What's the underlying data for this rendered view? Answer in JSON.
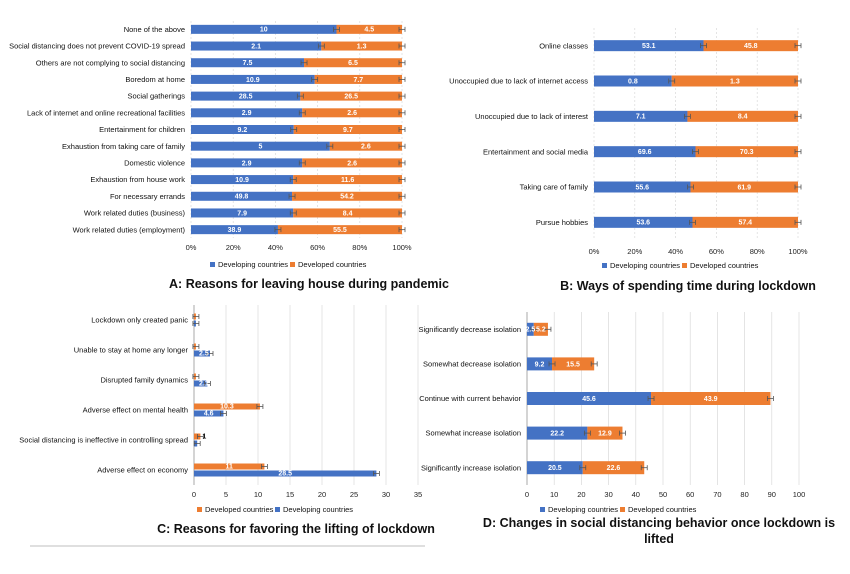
{
  "colors": {
    "developing": "#4472C4",
    "developed": "#ED7D31",
    "grid": "#d9d9d9",
    "divider": "#bfbfbf"
  },
  "chart_data": [
    {
      "type": "bar",
      "orientation": "horizontal",
      "stacked": "percent",
      "caption": "A: Reasons for leaving house during pandemic",
      "categories": [
        "None of the above",
        "Social distancing does not prevent COVID-19 spread",
        "Others are not complying to social distancing",
        "Boredom at home",
        "Social gatherings",
        "Lack of internet and online recreational facilities",
        "Entertainment for children",
        "Exhaustion from taking care of family",
        "Domestic violence",
        "Exhaustion from house work",
        "For necessary errands",
        "Work related duties (business)",
        "Work related duties (employment)"
      ],
      "series": [
        {
          "name": "Developing countries",
          "values": [
            10,
            2.1,
            7.5,
            10.9,
            28.5,
            2.9,
            9.2,
            5,
            2.9,
            10.9,
            49.8,
            7.9,
            38.9
          ]
        },
        {
          "name": "Developed countries",
          "values": [
            4.5,
            1.3,
            6.5,
            7.7,
            26.5,
            2.6,
            9.7,
            2.6,
            2.6,
            11.6,
            54.2,
            8.4,
            55.5
          ]
        }
      ],
      "xticks": [
        "0%",
        "20%",
        "40%",
        "60%",
        "80%",
        "100%"
      ],
      "legend": "bottom"
    },
    {
      "type": "bar",
      "orientation": "horizontal",
      "stacked": "percent",
      "caption": "B: Ways of spending time during lockdown",
      "categories": [
        "Online classes",
        "Unoccupied due to lack of internet access",
        "Unoccupied due to lack of interest",
        "Entertainment and social media",
        "Taking care of family",
        "Pursue hobbies"
      ],
      "series": [
        {
          "name": "Developing countries",
          "values": [
            53.1,
            0.8,
            7.1,
            69.6,
            55.6,
            53.6
          ]
        },
        {
          "name": "Developed countries",
          "values": [
            45.8,
            1.3,
            8.4,
            70.3,
            61.9,
            57.4
          ]
        }
      ],
      "xticks": [
        "0%",
        "20%",
        "40%",
        "60%",
        "80%",
        "100%"
      ],
      "legend": "bottom"
    },
    {
      "type": "bar",
      "orientation": "horizontal",
      "stacked": false,
      "caption": "C: Reasons for favoring the lifting of lockdown",
      "categories": [
        "Lockdown only created panic",
        "Unable to stay at home any longer",
        "Disrupted family dynamics",
        "Adverse effect on mental health",
        "Social distancing is ineffective in controlling spread",
        "Adverse effect on economy"
      ],
      "series": [
        {
          "name": "Developed countries",
          "values": [
            0.3,
            0.3,
            0.3,
            10.3,
            1,
            11
          ],
          "labels": [
            "",
            "",
            "",
            "10.3",
            "1",
            "11"
          ]
        },
        {
          "name": "Developing countries",
          "values": [
            0.3,
            2.5,
            2.1,
            4.6,
            0.5,
            28.5
          ],
          "labels": [
            "",
            "2.5",
            "2.1",
            "4.6",
            "",
            "28.5"
          ]
        }
      ],
      "xticks": [
        "0",
        "5",
        "10",
        "15",
        "20",
        "25",
        "30",
        "35"
      ],
      "xlim": [
        0,
        35
      ],
      "legend": "bottom"
    },
    {
      "type": "bar",
      "orientation": "horizontal",
      "stacked": true,
      "caption_lines": [
        "D: Changes in social distancing behavior once lockdown is",
        "lifted"
      ],
      "categories": [
        "Significantly decrease isolation",
        "Somewhat decrease isolation",
        "Continue with current behavior",
        "Somewhat increase isolation",
        "Significantly increase isolation"
      ],
      "series": [
        {
          "name": "Developing countries",
          "values": [
            2.5,
            9.2,
            45.6,
            22.2,
            20.5
          ],
          "labels": [
            "2.5",
            "9.2",
            "45.6",
            "22.2",
            "20.5"
          ]
        },
        {
          "name": "Developed countries",
          "values": [
            5.2,
            15.5,
            43.9,
            12.9,
            22.6
          ],
          "labels": [
            "5.2",
            "15.5",
            "43.9",
            "12.9",
            "22.6"
          ]
        }
      ],
      "xticks": [
        "0",
        "10",
        "20",
        "30",
        "40",
        "50",
        "60",
        "70",
        "80",
        "90",
        "100"
      ],
      "xlim": [
        0,
        100
      ],
      "legend": "bottom"
    }
  ]
}
